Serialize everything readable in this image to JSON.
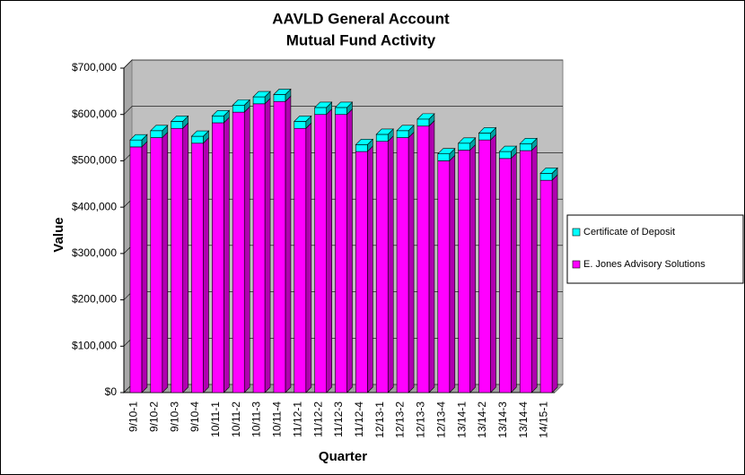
{
  "chart_data": {
    "type": "bar3d_stacked",
    "title": [
      "AAVLD General Account",
      "Mutual Fund Activity"
    ],
    "x_label": "Quarter",
    "y_label": "Value",
    "categories": [
      "9/10-1",
      "9/10-2",
      "9/10-3",
      "9/10-4",
      "10/11-1",
      "10/11-2",
      "10/11-3",
      "10/11-4",
      "11/12-1",
      "11/12-2",
      "11/12-3",
      "11/12-4",
      "12/13-1",
      "12/13-2",
      "12/13-3",
      "12/13-4",
      "13/14-1",
      "13/14-2",
      "13/14-3",
      "13/14-4",
      "14/15-1"
    ],
    "series": [
      {
        "name": "E. Jones Advisory Solutions",
        "color": "#ff00ff",
        "side": "#b000b0",
        "values": [
          530000,
          550000,
          570000,
          538000,
          582000,
          605000,
          623000,
          628000,
          570000,
          600000,
          600000,
          520000,
          542000,
          550000,
          575000,
          500000,
          523000,
          545000,
          505000,
          522000,
          458000
        ]
      },
      {
        "name": "Certificate of Deposit",
        "color": "#00ffff",
        "side": "#00a0a0",
        "values": [
          15000,
          15000,
          15000,
          15000,
          15000,
          15000,
          15000,
          15000,
          15000,
          15000,
          15000,
          15000,
          15000,
          15000,
          15000,
          15000,
          15000,
          15000,
          15000,
          15000,
          15000
        ]
      }
    ],
    "legend_order": [
      1,
      0
    ],
    "ylim": [
      0,
      700000
    ],
    "yticks": [
      {
        "value": 0,
        "label": "$0"
      },
      {
        "value": 100000,
        "label": "$100,000"
      },
      {
        "value": 200000,
        "label": "$200,000"
      },
      {
        "value": 300000,
        "label": "$300,000"
      },
      {
        "value": 400000,
        "label": "$400,000"
      },
      {
        "value": 500000,
        "label": "$500,000"
      },
      {
        "value": 600000,
        "label": "$600,000"
      },
      {
        "value": 700000,
        "label": "$700,000"
      }
    ],
    "grid": true,
    "legend": "right"
  }
}
